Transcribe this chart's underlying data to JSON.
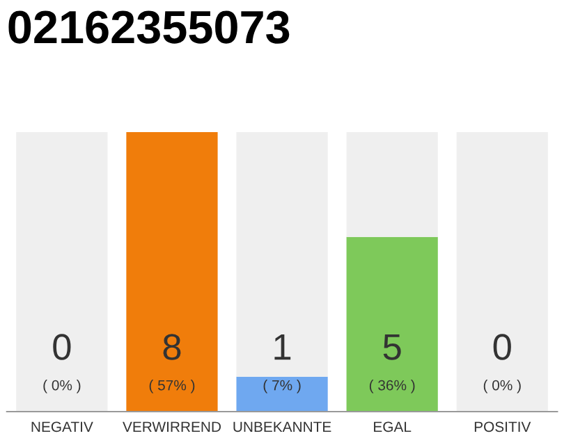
{
  "chart_data": {
    "type": "bar",
    "title": "02162355073",
    "stacked": true,
    "categories": [
      "NEGATIV",
      "VERWIRREND",
      "UNBEKANNTE",
      "EGAL",
      "POSITIV"
    ],
    "series": [
      {
        "colors": [
          "#888888",
          "#f07d0b",
          "#6fa8f0",
          "#7ec95a",
          "#888888"
        ],
        "values": [
          0,
          8,
          1,
          5,
          0
        ],
        "value_labels": [
          null,
          "8",
          "1",
          "5",
          null
        ]
      },
      {
        "color": "#efefef",
        "values": [
          8,
          0,
          7,
          3,
          8
        ]
      }
    ],
    "annotations": [
      "( 0% )",
      "( 57% )",
      "( 7% )",
      "( 36% )",
      "( 0% )",
      "0",
      "0"
    ],
    "grid": false
  }
}
